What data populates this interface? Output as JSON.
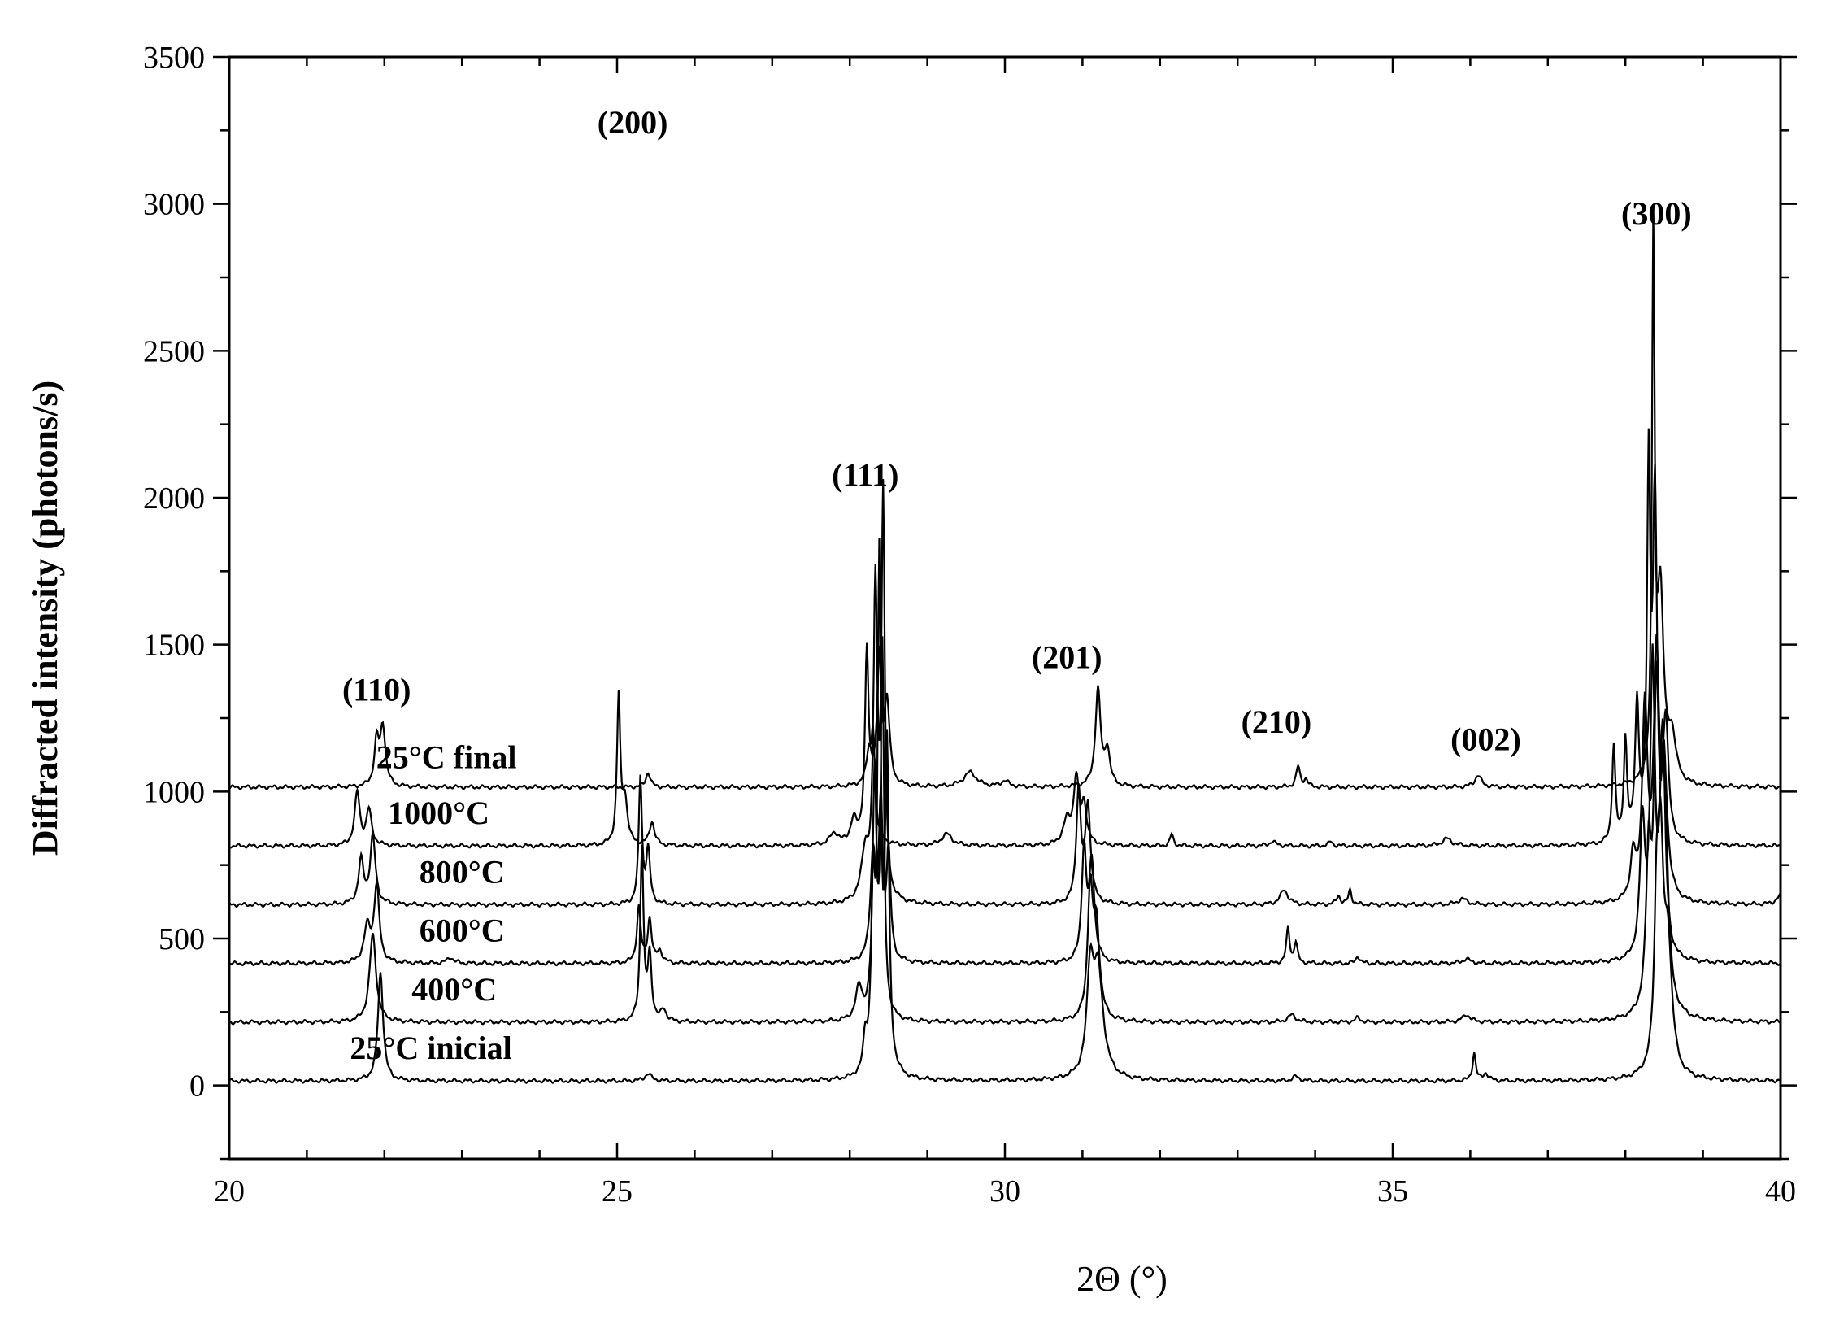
{
  "chart_data": {
    "type": "line",
    "title": "",
    "xlabel": "2Θ (°)",
    "ylabel": "Diffracted intensity (photons/s)",
    "xlim": [
      20,
      40
    ],
    "ylim": [
      -250,
      3500
    ],
    "x_ticks": [
      20,
      25,
      30,
      35,
      40
    ],
    "x_tick_labels": [
      "20",
      "25",
      "30",
      "35",
      "40"
    ],
    "y_ticks": [
      0,
      500,
      1000,
      1500,
      2000,
      2500,
      3000,
      3500
    ],
    "y_tick_labels": [
      "0",
      "500",
      "1000",
      "1500",
      "2000",
      "2500",
      "3000",
      "3500"
    ],
    "grid": false,
    "annotations": [
      {
        "text": "(110)",
        "x": 21.9,
        "y": 1310
      },
      {
        "text": "(200)",
        "x": 25.2,
        "y": 3240
      },
      {
        "text": "(111)",
        "x": 28.2,
        "y": 2040
      },
      {
        "text": "(201)",
        "x": 30.8,
        "y": 1420
      },
      {
        "text": "(210)",
        "x": 33.5,
        "y": 1200
      },
      {
        "text": "(002)",
        "x": 36.2,
        "y": 1140
      },
      {
        "text": "(300)",
        "x": 38.4,
        "y": 2930
      }
    ],
    "series": [
      {
        "name": "25°C inicial",
        "label_pos": [
          22.6,
          90
        ],
        "baseline": 15,
        "peaks": [
          [
            21.95,
            370,
            0.04
          ],
          [
            25.4,
            25,
            0.05
          ],
          [
            28.2,
            110,
            0.03
          ],
          [
            28.3,
            600,
            0.03
          ],
          [
            28.38,
            1680,
            0.025
          ],
          [
            28.48,
            1080,
            0.03
          ],
          [
            31.1,
            320,
            0.05
          ],
          [
            31.2,
            360,
            0.08
          ],
          [
            33.75,
            15,
            0.05
          ],
          [
            36.05,
            95,
            0.025
          ],
          [
            36.2,
            25,
            0.04
          ],
          [
            38.4,
            380,
            0.03
          ],
          [
            38.45,
            760,
            0.05
          ],
          [
            38.55,
            400,
            0.06
          ]
        ]
      },
      {
        "name": "400°C",
        "label_pos": [
          22.9,
          290
        ],
        "baseline": 215,
        "peaks": [
          [
            21.85,
            300,
            0.05
          ],
          [
            25.32,
            590,
            0.025
          ],
          [
            25.42,
            220,
            0.03
          ],
          [
            25.6,
            40,
            0.04
          ],
          [
            28.12,
            110,
            0.05
          ],
          [
            28.32,
            820,
            0.03
          ],
          [
            28.42,
            1240,
            0.025
          ],
          [
            31.1,
            420,
            0.04
          ],
          [
            31.18,
            300,
            0.05
          ],
          [
            33.7,
            25,
            0.06
          ],
          [
            34.55,
            15,
            0.04
          ],
          [
            35.95,
            25,
            0.06
          ],
          [
            38.3,
            500,
            0.04
          ],
          [
            38.4,
            1000,
            0.04
          ],
          [
            38.5,
            800,
            0.05
          ]
        ]
      },
      {
        "name": "600°C",
        "label_pos": [
          23.0,
          490
        ],
        "baseline": 415,
        "peaks": [
          [
            21.78,
            120,
            0.05
          ],
          [
            21.9,
            260,
            0.04
          ],
          [
            22.85,
            20,
            0.05
          ],
          [
            25.28,
            190,
            0.03
          ],
          [
            25.42,
            150,
            0.03
          ],
          [
            25.55,
            40,
            0.04
          ],
          [
            28.3,
            360,
            0.04
          ],
          [
            28.4,
            520,
            0.03
          ],
          [
            28.5,
            360,
            0.03
          ],
          [
            31.02,
            380,
            0.035
          ],
          [
            31.12,
            330,
            0.04
          ],
          [
            33.65,
            120,
            0.025
          ],
          [
            33.75,
            70,
            0.025
          ],
          [
            34.55,
            25,
            0.03
          ],
          [
            35.95,
            15,
            0.06
          ],
          [
            38.22,
            450,
            0.04
          ],
          [
            38.35,
            980,
            0.035
          ],
          [
            38.48,
            760,
            0.04
          ]
        ]
      },
      {
        "name": "800°C",
        "label_pos": [
          23.0,
          690
        ],
        "baseline": 615,
        "peaks": [
          [
            21.7,
            150,
            0.04
          ],
          [
            21.85,
            230,
            0.04
          ],
          [
            25.3,
            430,
            0.025
          ],
          [
            25.4,
            180,
            0.03
          ],
          [
            28.2,
            160,
            0.06
          ],
          [
            28.33,
            1050,
            0.03
          ],
          [
            28.43,
            1350,
            0.025
          ],
          [
            30.95,
            380,
            0.035
          ],
          [
            31.07,
            330,
            0.04
          ],
          [
            33.6,
            50,
            0.06
          ],
          [
            34.3,
            30,
            0.03
          ],
          [
            34.45,
            50,
            0.025
          ],
          [
            35.9,
            20,
            0.07
          ],
          [
            38.1,
            150,
            0.04
          ],
          [
            38.25,
            650,
            0.04
          ],
          [
            38.4,
            800,
            0.04
          ],
          [
            38.5,
            400,
            0.05
          ],
          [
            40.0,
            30,
            0.06
          ]
        ]
      },
      {
        "name": "1000°C",
        "label_pos": [
          22.7,
          890
        ],
        "baseline": 815,
        "peaks": [
          [
            21.65,
            180,
            0.04
          ],
          [
            21.8,
            120,
            0.04
          ],
          [
            25.02,
            500,
            0.025
          ],
          [
            25.1,
            150,
            0.04
          ],
          [
            25.45,
            80,
            0.04
          ],
          [
            27.8,
            40,
            0.07
          ],
          [
            28.05,
            80,
            0.05
          ],
          [
            28.22,
            640,
            0.03
          ],
          [
            28.3,
            330,
            0.03
          ],
          [
            29.25,
            40,
            0.08
          ],
          [
            30.8,
            80,
            0.06
          ],
          [
            30.92,
            220,
            0.04
          ],
          [
            31.02,
            130,
            0.04
          ],
          [
            32.15,
            40,
            0.025
          ],
          [
            33.45,
            15,
            0.05
          ],
          [
            34.2,
            15,
            0.03
          ],
          [
            35.7,
            25,
            0.07
          ],
          [
            37.85,
            330,
            0.025
          ],
          [
            38.0,
            340,
            0.025
          ],
          [
            38.15,
            460,
            0.03
          ],
          [
            38.3,
            1250,
            0.025
          ],
          [
            38.38,
            1150,
            0.03
          ],
          [
            38.52,
            400,
            0.04
          ]
        ]
      },
      {
        "name": "25°C final",
        "label_pos": [
          22.8,
          1080
        ],
        "baseline": 1015,
        "peaks": [
          [
            21.9,
            150,
            0.035
          ],
          [
            21.98,
            200,
            0.04
          ],
          [
            25.4,
            50,
            0.035
          ],
          [
            28.25,
            120,
            0.04
          ],
          [
            28.38,
            430,
            0.03
          ],
          [
            28.48,
            280,
            0.04
          ],
          [
            29.55,
            50,
            0.1
          ],
          [
            30.0,
            20,
            0.06
          ],
          [
            31.2,
            330,
            0.04
          ],
          [
            31.32,
            120,
            0.04
          ],
          [
            33.78,
            70,
            0.03
          ],
          [
            33.88,
            25,
            0.03
          ],
          [
            36.1,
            40,
            0.05
          ],
          [
            38.36,
            1820,
            0.02
          ],
          [
            38.45,
            650,
            0.05
          ],
          [
            38.6,
            150,
            0.06
          ]
        ]
      }
    ]
  }
}
